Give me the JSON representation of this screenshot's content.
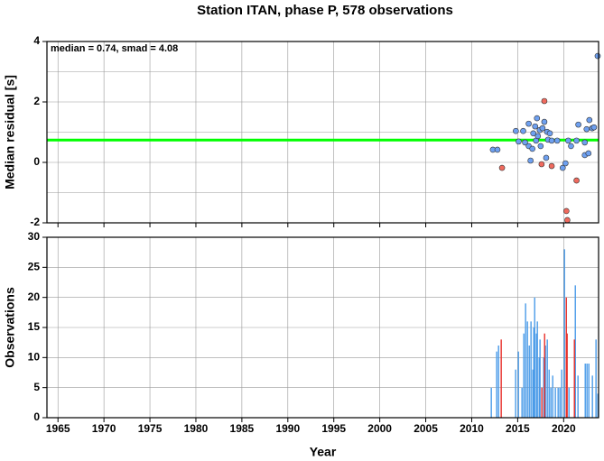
{
  "chart_data": [
    {
      "type": "scatter",
      "title": "Station ITAN, phase P, 578 observations",
      "ylabel": "Median residual [s]",
      "annotation": "median = 0.74, smad = 4.08",
      "hline": 0.74,
      "hline_color": "#00ff00",
      "xlim": [
        1963.8,
        2023.8
      ],
      "xticks": [
        1965,
        1970,
        1975,
        1980,
        1985,
        1990,
        1995,
        2000,
        2005,
        2010,
        2015,
        2020
      ],
      "ylim": [
        -2,
        4
      ],
      "yticks": [
        -2,
        0,
        2,
        4
      ],
      "yminor": [
        -1,
        1,
        3
      ],
      "grid": true,
      "series": [
        {
          "color": "#6ea0f0",
          "x": [
            2012.3,
            2012.8,
            2014.8,
            2015.1,
            2015.6,
            2015.8,
            2016.2,
            2016.2,
            2016.4,
            2016.6,
            2016.7,
            2016.9,
            2017.0,
            2017.1,
            2017.2,
            2017.4,
            2017.5,
            2017.7,
            2017.9,
            2018.1,
            2018.2,
            2018.3,
            2018.5,
            2018.7,
            2019.3,
            2019.9,
            2020.2,
            2020.5,
            2020.8,
            2021.4,
            2021.6,
            2022.3,
            2022.5,
            2022.8,
            2023.1,
            2023.3,
            2023.7,
            2022.3,
            2022.7
          ],
          "values": [
            0.42,
            0.42,
            1.04,
            0.69,
            1.04,
            0.66,
            0.54,
            1.28,
            0.06,
            0.45,
            0.96,
            1.19,
            0.72,
            1.46,
            0.87,
            1.07,
            0.54,
            1.13,
            1.34,
            0.15,
            1.01,
            0.75,
            0.96,
            0.72,
            0.72,
            -0.18,
            -0.03,
            0.72,
            0.54,
            0.72,
            1.25,
            0.66,
            1.1,
            1.4,
            1.13,
            1.16,
            3.52,
            0.24,
            0.3
          ]
        },
        {
          "color": "#f06a5e",
          "x": [
            2013.3,
            2017.6,
            2017.9,
            2018.7,
            2020.3,
            2020.4,
            2021.4
          ],
          "values": [
            -0.18,
            -0.06,
            2.03,
            -0.12,
            -1.61,
            -1.91,
            -0.6
          ]
        }
      ]
    },
    {
      "type": "bar",
      "xlabel": "Year",
      "ylabel": "Observations",
      "xlim": [
        1963.8,
        2023.8
      ],
      "xticks": [
        1965,
        1970,
        1975,
        1980,
        1985,
        1990,
        1995,
        2000,
        2005,
        2010,
        2015,
        2020
      ],
      "ylim": [
        0,
        30
      ],
      "yticks": [
        0,
        5,
        10,
        15,
        20,
        25,
        30
      ],
      "grid": true,
      "series": [
        {
          "color": "#4a9be8",
          "x": [
            2012.13,
            2012.72,
            2012.92,
            2014.78,
            2015.08,
            2015.47,
            2015.67,
            2015.86,
            2016.06,
            2016.26,
            2016.45,
            2016.65,
            2016.75,
            2016.85,
            2017.04,
            2017.14,
            2017.34,
            2017.43,
            2017.83,
            2018.02,
            2018.22,
            2018.42,
            2018.61,
            2018.81,
            2019.1,
            2019.4,
            2019.6,
            2019.79,
            2020.09,
            2020.58,
            2021.27,
            2021.56,
            2022.35,
            2022.54,
            2022.74,
            2023.13,
            2023.52,
            2023.72
          ],
          "values": [
            5,
            11,
            12,
            8,
            11,
            5,
            14,
            19,
            16,
            12,
            16,
            8,
            15,
            20,
            14,
            16,
            10,
            13,
            10,
            12,
            13,
            8,
            5,
            7,
            5,
            5,
            5,
            8,
            28,
            5,
            22,
            7,
            9,
            9,
            9,
            7,
            13,
            4
          ]
        },
        {
          "color": "#e8302a",
          "x": [
            2013.21,
            2017.63,
            2017.93,
            2020.29,
            2020.38,
            2021.17
          ],
          "values": [
            13,
            5,
            14,
            20,
            14,
            13
          ]
        }
      ]
    }
  ]
}
